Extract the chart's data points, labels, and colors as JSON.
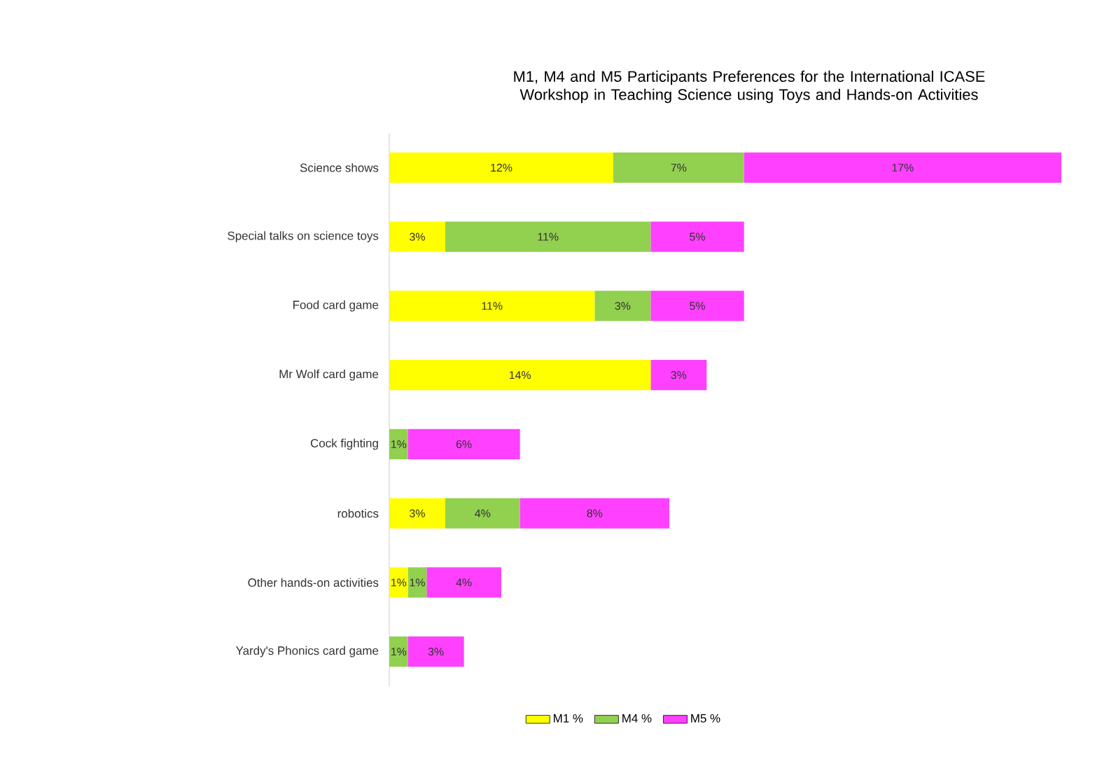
{
  "chart_data": {
    "type": "bar",
    "orientation": "horizontal",
    "stacked": true,
    "title": "M1, M4 and M5 Participants Preferences for the International ICASE Workshop in Teaching Science using Toys and Hands-on Activities",
    "categories": [
      "Science shows",
      "Special talks on science toys",
      "Food card game",
      "Mr Wolf card game",
      "Cock fighting",
      "robotics",
      "Other hands-on activities",
      "Yardy's Phonics card game"
    ],
    "series": [
      {
        "name": "M1 %",
        "color": "#ffff00",
        "values": [
          12,
          3,
          11,
          14,
          null,
          3,
          1,
          null
        ],
        "value_labels": [
          "12%",
          "3%",
          "11%",
          "14%",
          null,
          "3%",
          "1%",
          null
        ]
      },
      {
        "name": "M4 %",
        "color": "#92d050",
        "values": [
          7,
          11,
          3,
          null,
          1,
          4,
          1,
          1
        ],
        "value_labels": [
          "7%",
          "11%",
          "3%",
          null,
          "1%",
          "4%",
          "1%",
          "1%"
        ]
      },
      {
        "name": "M5 %",
        "color": "#ff40ff",
        "values": [
          17,
          5,
          5,
          3,
          6,
          8,
          4,
          3
        ],
        "value_labels": [
          "17%",
          "5%",
          "5%",
          "3%",
          "6%",
          "8%",
          "4%",
          "3%"
        ]
      }
    ],
    "legend": "bottom"
  }
}
